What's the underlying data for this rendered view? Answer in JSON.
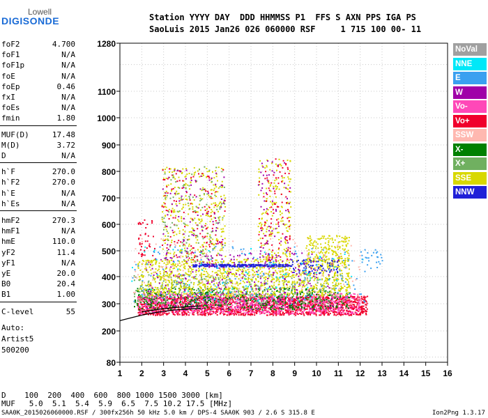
{
  "logo": {
    "top": "Lowell",
    "main": "DIGISONDE"
  },
  "header": {
    "line1": "Station YYYY DAY  DDD HHMMSS P1  FFS S AXN PPS IGA PS",
    "line2": "SaoLuis 2015 Jan26 026 060000 RSF     1 715 100 00- 11"
  },
  "params": [
    {
      "label": "foF2",
      "value": "4.700"
    },
    {
      "label": "foF1",
      "value": "N/A"
    },
    {
      "label": "foF1p",
      "value": "N/A"
    },
    {
      "label": "foE",
      "value": "N/A"
    },
    {
      "label": "foEp",
      "value": "0.46"
    },
    {
      "label": "fxI",
      "value": "N/A"
    },
    {
      "label": "foEs",
      "value": "N/A"
    },
    {
      "label": "fmin",
      "value": "1.80"
    },
    {
      "label": "MUF(D)",
      "value": "17.48"
    },
    {
      "label": "M(D)",
      "value": "3.72"
    },
    {
      "label": "D",
      "value": "N/A"
    },
    {
      "label": "h`F",
      "value": "270.0"
    },
    {
      "label": "h`F2",
      "value": "270.0"
    },
    {
      "label": "h`E",
      "value": "N/A"
    },
    {
      "label": "h`Es",
      "value": "N/A"
    },
    {
      "label": "hmF2",
      "value": "270.3"
    },
    {
      "label": "hmF1",
      "value": "N/A"
    },
    {
      "label": "hmE",
      "value": "110.0"
    },
    {
      "label": "yF2",
      "value": "11.4"
    },
    {
      "label": "yF1",
      "value": "N/A"
    },
    {
      "label": "yE",
      "value": "20.0"
    },
    {
      "label": "B0",
      "value": "20.4"
    },
    {
      "label": "B1",
      "value": "1.00"
    },
    {
      "label": "C-level",
      "value": "55"
    }
  ],
  "notes": [
    "Auto:",
    "Artist5",
    "500200"
  ],
  "legend": [
    {
      "label": "NoVal",
      "color": "#a0a0a0"
    },
    {
      "label": "NNE",
      "color": "#00e8f8"
    },
    {
      "label": "E",
      "color": "#3aa0f0"
    },
    {
      "label": "W",
      "color": "#a000a8"
    },
    {
      "label": "Vo-",
      "color": "#ff48b8"
    },
    {
      "label": "Vo+",
      "color": "#f0002c"
    },
    {
      "label": "SSW",
      "color": "#ffb8b0"
    },
    {
      "label": "X-",
      "color": "#008000"
    },
    {
      "label": "X+",
      "color": "#70b060"
    },
    {
      "label": "SSE",
      "color": "#d8d800"
    },
    {
      "label": "NNW",
      "color": "#2020d8"
    }
  ],
  "bottom": {
    "d_row": "D    100  200  400  600  800 1000 1500 3000 [km]",
    "muf_row": "MUF   5.0  5.1  5.4  5.9  6.5  7.5 10.2 17.5 [MHz]"
  },
  "footer": {
    "left": "SAA0K_2015026060000.RSF / 300fx256h 50 kHz 5.0 km / DPS-4 SAA0K 903 / 2.6 S 315.8 E",
    "right": "Ion2Png 1.3.17"
  },
  "chart_data": {
    "type": "scatter",
    "title": "",
    "xlabel": "",
    "ylabel": "",
    "xlim": [
      1,
      16
    ],
    "ylim": [
      80,
      1280
    ],
    "x_ticks": [
      1,
      2,
      3,
      4,
      5,
      6,
      7,
      8,
      9,
      10,
      11,
      12,
      13,
      14,
      15,
      16
    ],
    "y_ticks": [
      80,
      200,
      300,
      400,
      500,
      600,
      700,
      800,
      900,
      1000,
      1100,
      1280
    ],
    "y_scale": "nonlinear (h' compressed toward low heights)",
    "grid": true,
    "legend_position": "right",
    "trace": {
      "name": "",
      "x": [
        1.0,
        1.5,
        2.0,
        2.5,
        3.0,
        3.5,
        4.0,
        4.5,
        4.7
      ],
      "y": [
        238,
        248,
        258,
        266,
        272,
        277,
        280,
        282,
        284
      ]
    },
    "trace2": {
      "x": [
        2.0,
        2.5,
        3.0,
        3.5,
        4.0,
        4.5,
        4.7
      ],
      "y": [
        270,
        276,
        282,
        286,
        289,
        291,
        292
      ]
    },
    "clusters": [
      {
        "color": "#f0002c",
        "xmin": 1.8,
        "xmax": 12.3,
        "ymin": 260,
        "ymax": 330,
        "count": 1800
      },
      {
        "color": "#ff48b8",
        "xmin": 1.8,
        "xmax": 12.0,
        "ymin": 265,
        "ymax": 340,
        "count": 900
      },
      {
        "color": "#008000",
        "xmin": 1.6,
        "xmax": 11.5,
        "ymin": 280,
        "ymax": 360,
        "count": 500
      },
      {
        "color": "#70b060",
        "xmin": 1.6,
        "xmax": 11.2,
        "ymin": 300,
        "ymax": 410,
        "count": 350
      },
      {
        "color": "#d8d800",
        "xmin": 1.8,
        "xmax": 11.5,
        "ymin": 330,
        "ymax": 470,
        "count": 1100
      },
      {
        "color": "#2020d8",
        "xmin": 4.3,
        "xmax": 8.8,
        "ymin": 440,
        "ymax": 450,
        "count": 260
      },
      {
        "color": "#2020d8",
        "xmin": 8.8,
        "xmax": 11.0,
        "ymin": 415,
        "ymax": 470,
        "count": 80
      },
      {
        "color": "#a000a8",
        "xmin": 2.0,
        "xmax": 11.2,
        "ymin": 280,
        "ymax": 500,
        "count": 300
      },
      {
        "color": "#3aa0f0",
        "xmin": 1.5,
        "xmax": 12.2,
        "ymin": 300,
        "ymax": 520,
        "count": 160
      },
      {
        "color": "#00e8f8",
        "xmin": 1.5,
        "xmax": 12.2,
        "ymin": 310,
        "ymax": 520,
        "count": 90
      },
      {
        "color": "#ffb8b0",
        "xmin": 1.5,
        "xmax": 12.0,
        "ymin": 300,
        "ymax": 550,
        "count": 200
      },
      {
        "color": "#d8d800",
        "xmin": 2.9,
        "xmax": 5.8,
        "ymin": 460,
        "ymax": 820,
        "count": 320
      },
      {
        "color": "#f0002c",
        "xmin": 2.9,
        "xmax": 5.8,
        "ymin": 460,
        "ymax": 820,
        "count": 120
      },
      {
        "color": "#70b060",
        "xmin": 2.9,
        "xmax": 5.8,
        "ymin": 460,
        "ymax": 820,
        "count": 120
      },
      {
        "color": "#a000a8",
        "xmin": 2.9,
        "xmax": 5.8,
        "ymin": 460,
        "ymax": 820,
        "count": 80
      },
      {
        "color": "#d8d800",
        "xmin": 7.3,
        "xmax": 8.8,
        "ymin": 460,
        "ymax": 850,
        "count": 180
      },
      {
        "color": "#f0002c",
        "xmin": 7.3,
        "xmax": 8.8,
        "ymin": 460,
        "ymax": 850,
        "count": 90
      },
      {
        "color": "#a000a8",
        "xmin": 7.3,
        "xmax": 8.8,
        "ymin": 460,
        "ymax": 850,
        "count": 60
      },
      {
        "color": "#d8d800",
        "xmin": 9.5,
        "xmax": 11.5,
        "ymin": 460,
        "ymax": 560,
        "count": 160
      },
      {
        "color": "#f0002c",
        "xmin": 1.8,
        "xmax": 2.6,
        "ymin": 480,
        "ymax": 620,
        "count": 40
      },
      {
        "color": "#3aa0f0",
        "xmin": 12.0,
        "xmax": 13.0,
        "ymin": 430,
        "ymax": 510,
        "count": 25
      }
    ]
  }
}
